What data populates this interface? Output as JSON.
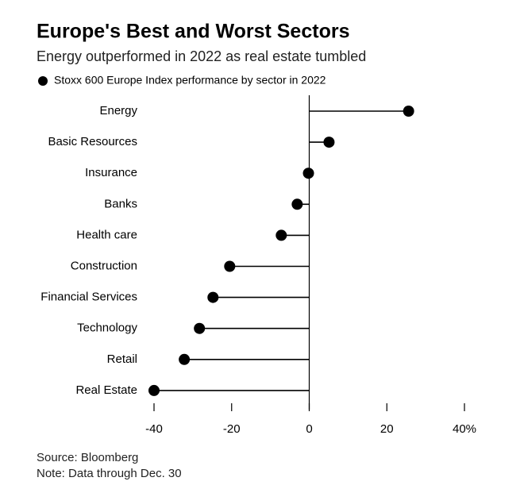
{
  "chart_data": {
    "type": "lollipop",
    "title": "Europe's Best and Worst Sectors",
    "subtitle": "Energy outperformed in 2022 as real estate tumbled",
    "categories": [
      "Energy",
      "Basic Resources",
      "Insurance",
      "Banks",
      "Health care",
      "Construction",
      "Financial Services",
      "Technology",
      "Retail",
      "Real Estate"
    ],
    "series": [
      {
        "name": "Stoxx 600 Europe Index performance by sector in 2022",
        "color": "#000000",
        "values": [
          25.6,
          5.1,
          -0.2,
          -3.1,
          -7.2,
          -20.5,
          -24.8,
          -28.3,
          -32.2,
          -40.0
        ]
      }
    ],
    "xlim": [
      -40,
      40
    ],
    "xticks": [
      -40,
      -20,
      0,
      20,
      {
        "value": 40,
        "label": "40%"
      }
    ],
    "source": "Source: Bloomberg",
    "note": "Note: Data through Dec. 30"
  }
}
